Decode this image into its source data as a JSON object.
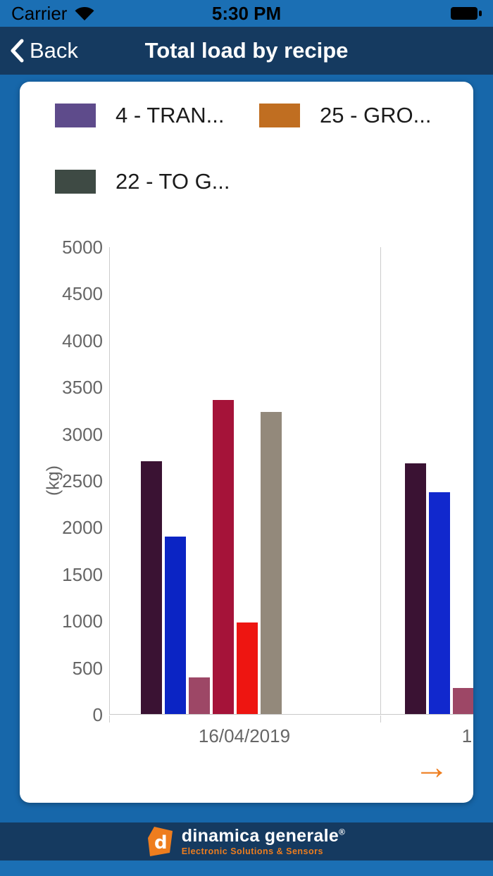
{
  "status_bar": {
    "carrier": "Carrier",
    "time": "5:30 PM"
  },
  "nav_bar": {
    "back_label": "Back",
    "title": "Total load by recipe"
  },
  "icons": {
    "wifi": "wifi-icon",
    "battery": "battery-full-icon",
    "back": "chevron-left-icon",
    "next": "arrow-right-icon"
  },
  "controls": {
    "next_arrow": "→"
  },
  "chart_data": {
    "type": "bar",
    "title": "Total load by recipe",
    "ylabel": "(kg)",
    "xlabel": "",
    "ylim": [
      0,
      5000
    ],
    "yticks": [
      0,
      500,
      1000,
      1500,
      2000,
      2500,
      3000,
      3500,
      4000,
      4500,
      5000
    ],
    "grid": "vertical-category-separators",
    "legend_position": "top",
    "legend": [
      {
        "label": "4 - TRAN...",
        "color": "#5e4b8b"
      },
      {
        "label": "25 - GRO...",
        "color": "#c06e21"
      },
      {
        "label": "22 - TO G...",
        "color": "#3e4a44"
      }
    ],
    "groups": [
      {
        "category": "16/04/2019",
        "bars": [
          {
            "value": 2700,
            "color": "#3a1233"
          },
          {
            "value": 1900,
            "color": "#0b24c4"
          },
          {
            "value": 390,
            "color": "#9d4766"
          },
          {
            "value": 3360,
            "color": "#a51339"
          },
          {
            "value": 980,
            "color": "#ee1511"
          },
          {
            "value": 3230,
            "color": "#93897b"
          }
        ]
      },
      {
        "category": "1",
        "bars": [
          {
            "value": 2680,
            "color": "#3a1233"
          },
          {
            "value": 2370,
            "color": "#1128cd"
          },
          {
            "value": 280,
            "color": "#9d4766"
          }
        ]
      }
    ]
  },
  "footer": {
    "brand": "dinamica generale",
    "registered": "®",
    "tagline": "Electronic Solutions & Sensors"
  }
}
